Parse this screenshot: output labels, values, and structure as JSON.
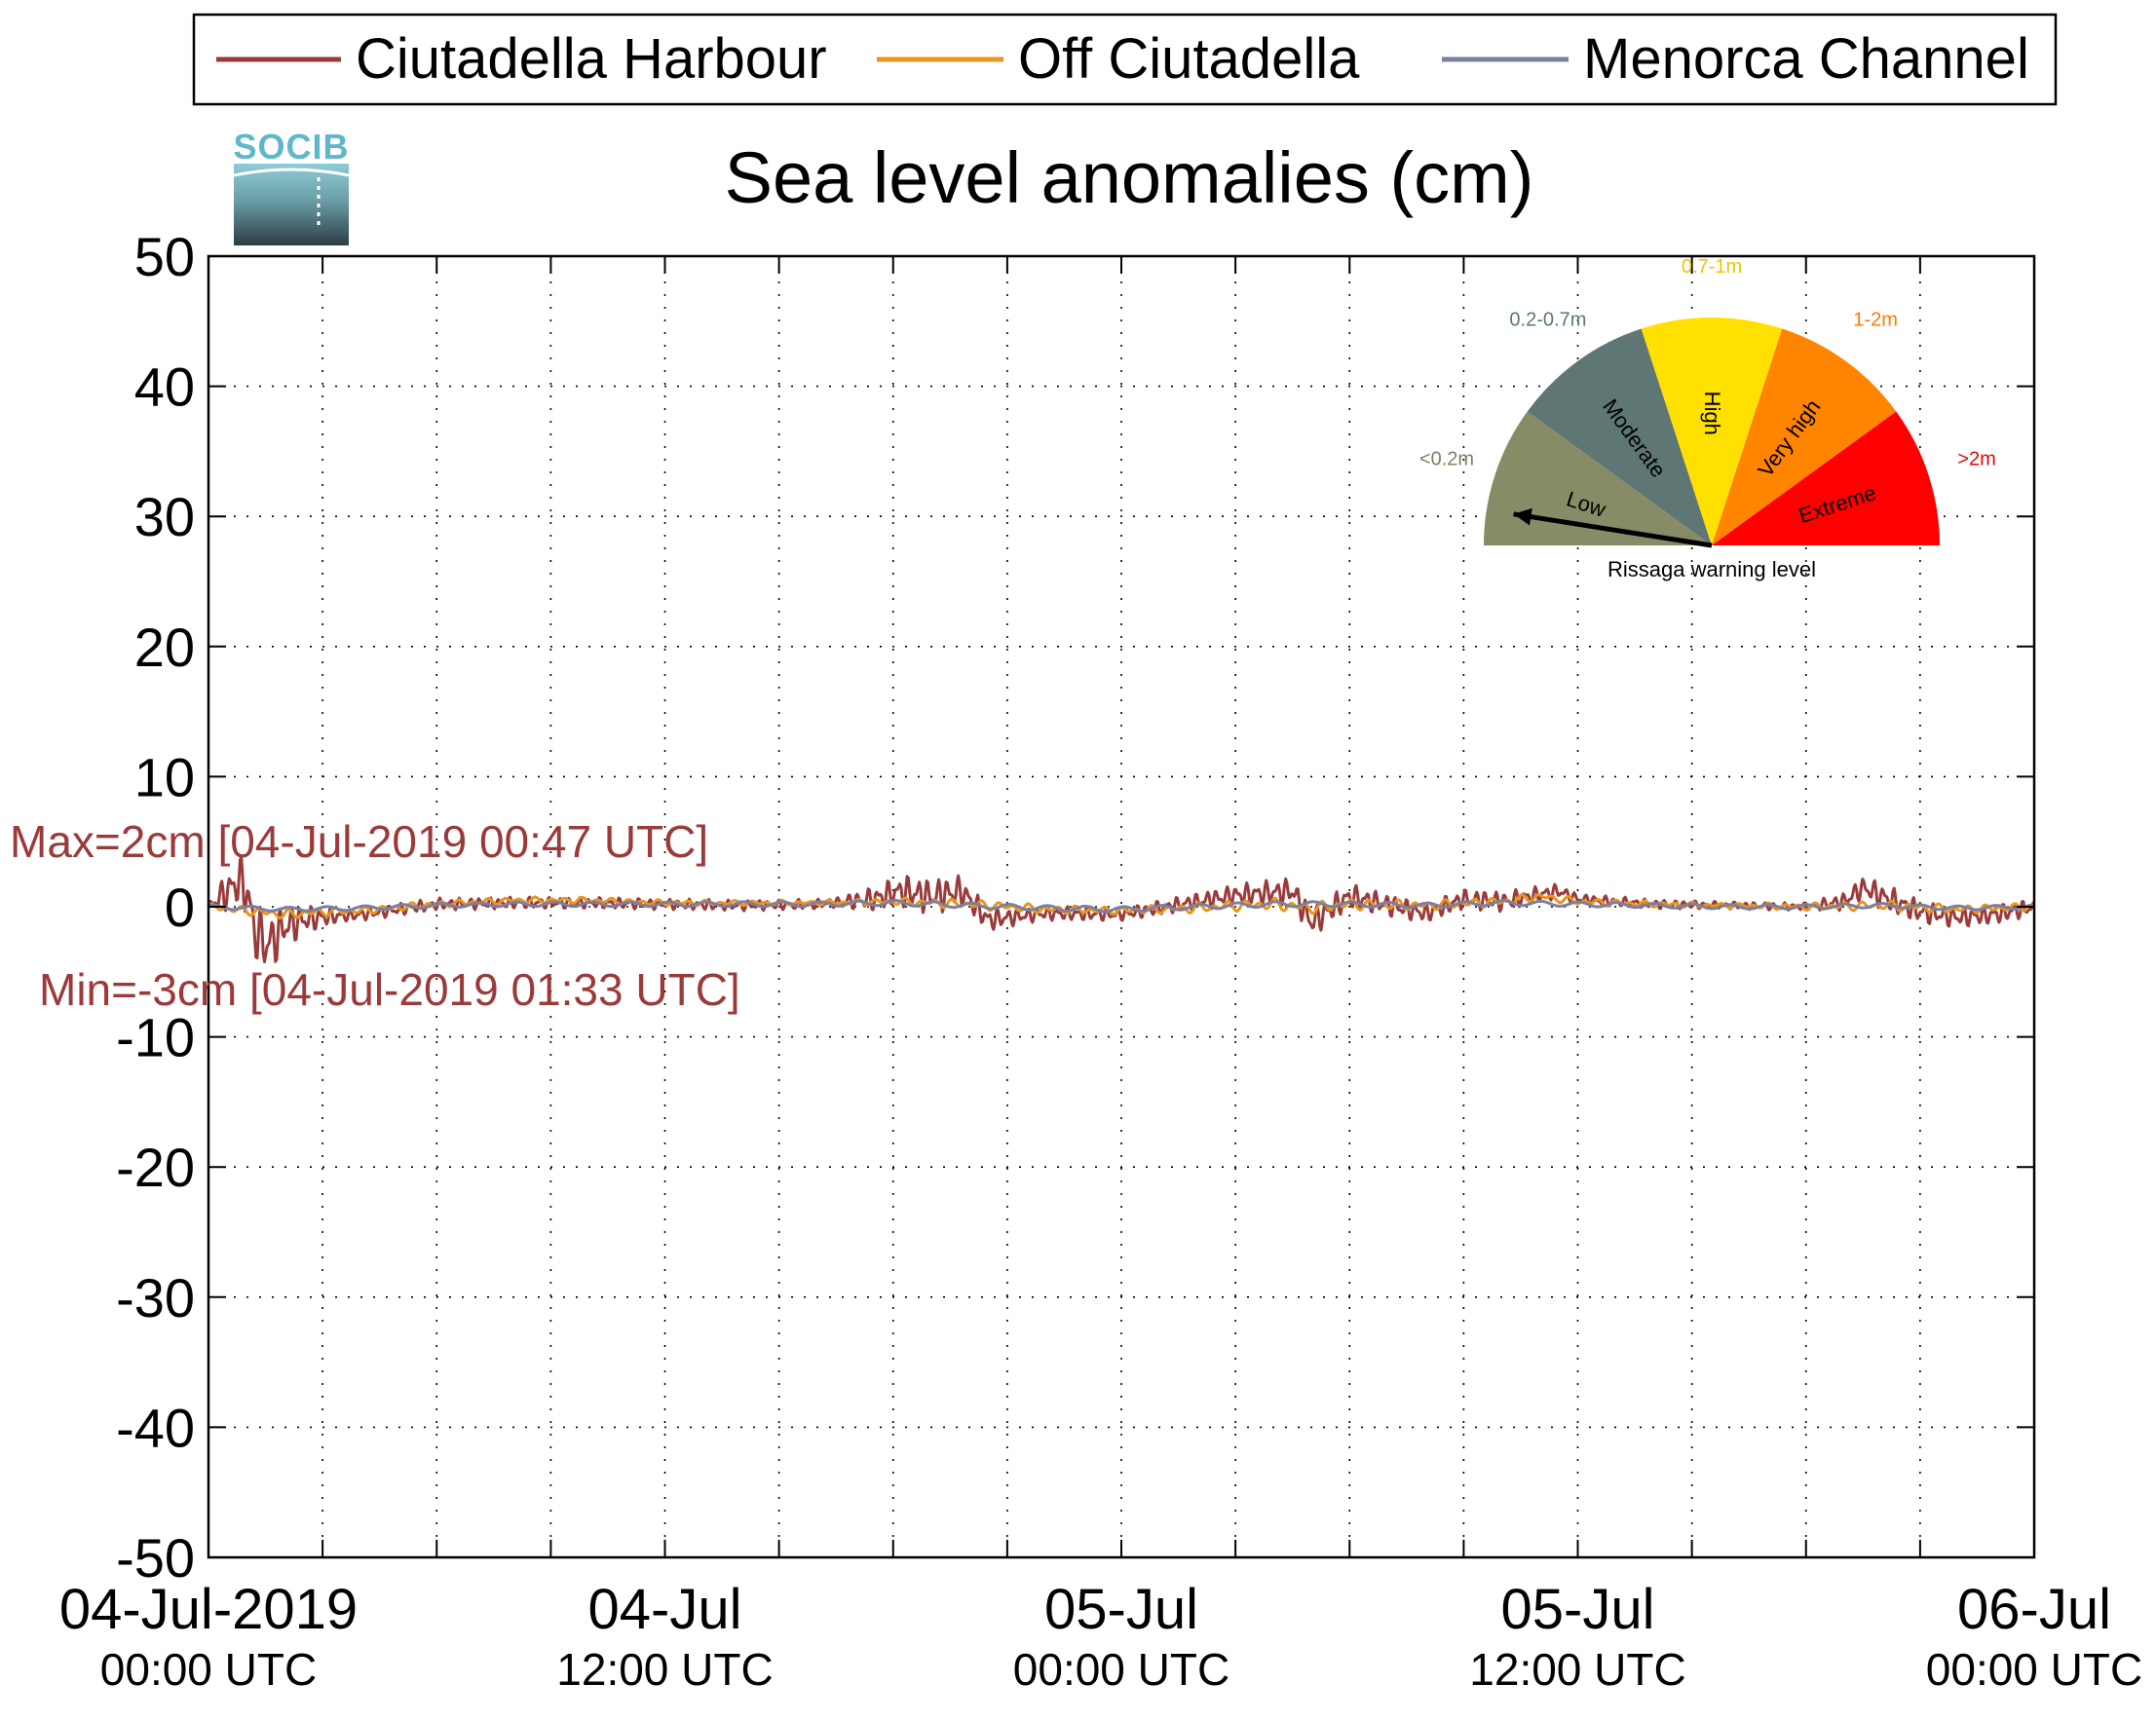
{
  "chart_data": {
    "type": "line",
    "title": "Sea level anomalies (cm)",
    "logo_text": "SOCIB",
    "ylim": [
      -50,
      50
    ],
    "yticks": [
      -50,
      -40,
      -30,
      -20,
      -10,
      0,
      10,
      20,
      30,
      40,
      50
    ],
    "ytick_labels": [
      "-50",
      "-40",
      "-30",
      "-20",
      "-10",
      "0",
      "10",
      "20",
      "30",
      "40",
      "50"
    ],
    "xlim_hours": [
      0,
      48
    ],
    "x_start": "04-Jul-2019 00:00 UTC",
    "x_end": "06-Jul-2019 00:00 UTC",
    "xtick_hours": [
      0,
      12,
      24,
      36,
      48
    ],
    "xtick_labels": [
      {
        "date": "04-Jul-2019",
        "time": "00:00 UTC"
      },
      {
        "date": "04-Jul",
        "time": "12:00 UTC"
      },
      {
        "date": "05-Jul",
        "time": "00:00 UTC"
      },
      {
        "date": "05-Jul",
        "time": "12:00 UTC"
      },
      {
        "date": "06-Jul",
        "time": "00:00 UTC"
      }
    ],
    "minor_xtick_hours": [
      3,
      6,
      9,
      15,
      18,
      21,
      27,
      30,
      33,
      39,
      42,
      45
    ],
    "grid": true,
    "legend_position": "top",
    "series": [
      {
        "name": "Ciutadella Harbour",
        "color": "#9b3a3a",
        "sample_hours": [
          0,
          0.5,
          0.8,
          1.0,
          1.2,
          1.55,
          2.0,
          2.5,
          3,
          4,
          6,
          8,
          10,
          12,
          14,
          16,
          17.5,
          18.2,
          19,
          19.8,
          20.5,
          22,
          24,
          26,
          27,
          28.5,
          29,
          30,
          32,
          33,
          34,
          35.5,
          36,
          38,
          40,
          42,
          43,
          43.5,
          44,
          45,
          46,
          47,
          48
        ],
        "sample_values": [
          0,
          1.2,
          2.0,
          1.4,
          -1.8,
          -3.0,
          -1.5,
          -1.0,
          -0.8,
          -0.6,
          0.2,
          0.3,
          0.3,
          0.2,
          0.1,
          0.2,
          0.6,
          1.2,
          0.8,
          1.2,
          -1.0,
          -0.5,
          -0.6,
          0.4,
          0.9,
          1.2,
          -1.2,
          0.8,
          -0.5,
          0.6,
          0.4,
          1.2,
          0.6,
          0.2,
          0.1,
          0.0,
          0.4,
          1.5,
          0.8,
          -0.4,
          -0.8,
          -0.6,
          0
        ],
        "amplitude_hours": [
          0,
          0.5,
          1.0,
          1.6,
          2.5,
          3.5,
          16.5,
          17.5,
          18.5,
          19.5,
          20.3,
          21.5,
          24,
          26,
          28,
          29,
          30,
          32,
          34,
          35.5,
          36,
          37,
          40,
          42,
          43,
          44,
          45,
          48
        ],
        "amplitude_values": [
          0.4,
          1.6,
          2.4,
          2.4,
          1.2,
          0.5,
          0.4,
          1.0,
          1.4,
          1.4,
          1.0,
          0.6,
          0.5,
          0.7,
          1.0,
          1.2,
          1.0,
          0.8,
          0.8,
          0.6,
          0.4,
          0.4,
          0.3,
          0.3,
          0.7,
          1.1,
          0.9,
          0.7
        ]
      },
      {
        "name": "Off Ciutadella",
        "color": "#e8961e",
        "sample_hours": [
          0,
          1,
          2,
          3,
          4,
          6,
          8,
          10,
          12,
          14,
          16,
          18,
          19,
          20,
          22,
          24,
          26,
          27,
          28,
          29,
          30,
          32,
          34,
          35,
          36,
          38,
          40,
          42,
          44,
          46,
          48
        ],
        "sample_values": [
          0,
          -0.3,
          -0.6,
          -0.4,
          -0.3,
          0.2,
          0.5,
          0.5,
          0.3,
          0.3,
          0.3,
          0.4,
          0.3,
          0.2,
          -0.2,
          -0.3,
          -0.1,
          0.1,
          0.2,
          -0.1,
          0.2,
          0.1,
          0.4,
          0.8,
          0.4,
          0.2,
          0.1,
          0.0,
          0.1,
          -0.2,
          0
        ],
        "amplitude_hours": [
          0,
          2,
          4,
          16,
          20,
          24,
          28,
          32,
          36,
          40,
          44,
          48
        ],
        "amplitude_values": [
          0.3,
          0.4,
          0.3,
          0.2,
          0.4,
          0.3,
          0.5,
          0.4,
          0.3,
          0.2,
          0.4,
          0.3
        ]
      },
      {
        "name": "Menorca Channel",
        "color": "#7b7fa3",
        "sample_hours": [
          0,
          2,
          4,
          6,
          8,
          10,
          12,
          14,
          16,
          18,
          20,
          22,
          24,
          26,
          28,
          30,
          32,
          34,
          36,
          38,
          40,
          42,
          44,
          46,
          48
        ],
        "sample_values": [
          0,
          -0.2,
          -0.1,
          0.1,
          0.2,
          0.2,
          0.2,
          0.2,
          0.2,
          0.3,
          0.1,
          -0.1,
          -0.2,
          0.0,
          0.2,
          0.2,
          0.1,
          0.3,
          0.2,
          0.1,
          0.0,
          0.0,
          0.1,
          -0.1,
          0
        ],
        "amplitude_hours": [
          0,
          24,
          48
        ],
        "amplitude_values": [
          0.15,
          0.2,
          0.15
        ]
      }
    ],
    "annotations": {
      "max_label": "Max=2cm [04-Jul-2019 00:47 UTC]",
      "min_label": "Min=-3cm [04-Jul-2019 01:33 UTC]",
      "color": "#9b3a3a"
    },
    "gauge": {
      "title": "Rissaga warning level",
      "needle_level": "Low",
      "needle_fraction": 0.05,
      "segments": [
        {
          "label": "Low",
          "range": "<0.2m",
          "color": "#878b66",
          "range_color": "#7c8060"
        },
        {
          "label": "Moderate",
          "range": "0.2-0.7m",
          "color": "#5e7775",
          "range_color": "#5e7775"
        },
        {
          "label": "High",
          "range": "0.7-1m",
          "color": "#ffe000",
          "range_color": "#e8c800"
        },
        {
          "label": "Very high",
          "range": "1-2m",
          "color": "#ff8400",
          "range_color": "#ff7a00"
        },
        {
          "label": "Extreme",
          "range": ">2m",
          "color": "#ff0000",
          "range_color": "#ee0000"
        }
      ]
    }
  }
}
